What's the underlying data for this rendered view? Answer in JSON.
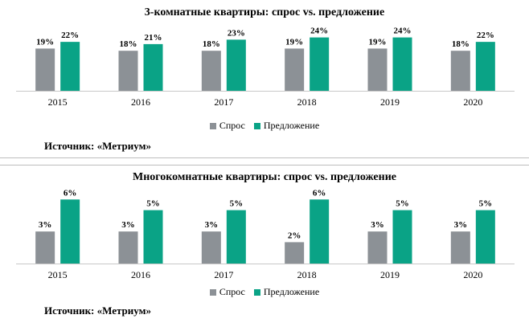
{
  "colors": {
    "demand": "#8c9196",
    "supply": "#0aa386"
  },
  "source_text": "Источник: «Метриум»",
  "chart_data": [
    {
      "type": "bar",
      "title": "3-комнатные квартиры: спрос vs. предложение",
      "categories": [
        "2015",
        "2016",
        "2017",
        "2018",
        "2019",
        "2020"
      ],
      "series": [
        {
          "name": "Спрос",
          "values": [
            19,
            18,
            18,
            19,
            19,
            18
          ],
          "labels": [
            "19%",
            "18%",
            "18%",
            "19%",
            "19%",
            "18%"
          ]
        },
        {
          "name": "Предложение",
          "values": [
            22,
            21,
            23,
            24,
            24,
            22
          ],
          "labels": [
            "22%",
            "21%",
            "23%",
            "24%",
            "24%",
            "22%"
          ]
        }
      ],
      "ylim": [
        0,
        30
      ],
      "legend": "bottom",
      "grid": false
    },
    {
      "type": "bar",
      "title": "Многокомнатные квартиры: спрос vs. предложение",
      "categories": [
        "2015",
        "2016",
        "2017",
        "2018",
        "2019",
        "2020"
      ],
      "series": [
        {
          "name": "Спрос",
          "values": [
            3,
            3,
            3,
            2,
            3,
            3
          ],
          "labels": [
            "3%",
            "3%",
            "3%",
            "2%",
            "3%",
            "3%"
          ]
        },
        {
          "name": "Предложение",
          "values": [
            6,
            5,
            5,
            6,
            5,
            5
          ],
          "labels": [
            "6%",
            "5%",
            "5%",
            "6%",
            "5%",
            "5%"
          ]
        }
      ],
      "ylim": [
        0,
        7
      ],
      "legend": "bottom",
      "grid": false
    }
  ]
}
